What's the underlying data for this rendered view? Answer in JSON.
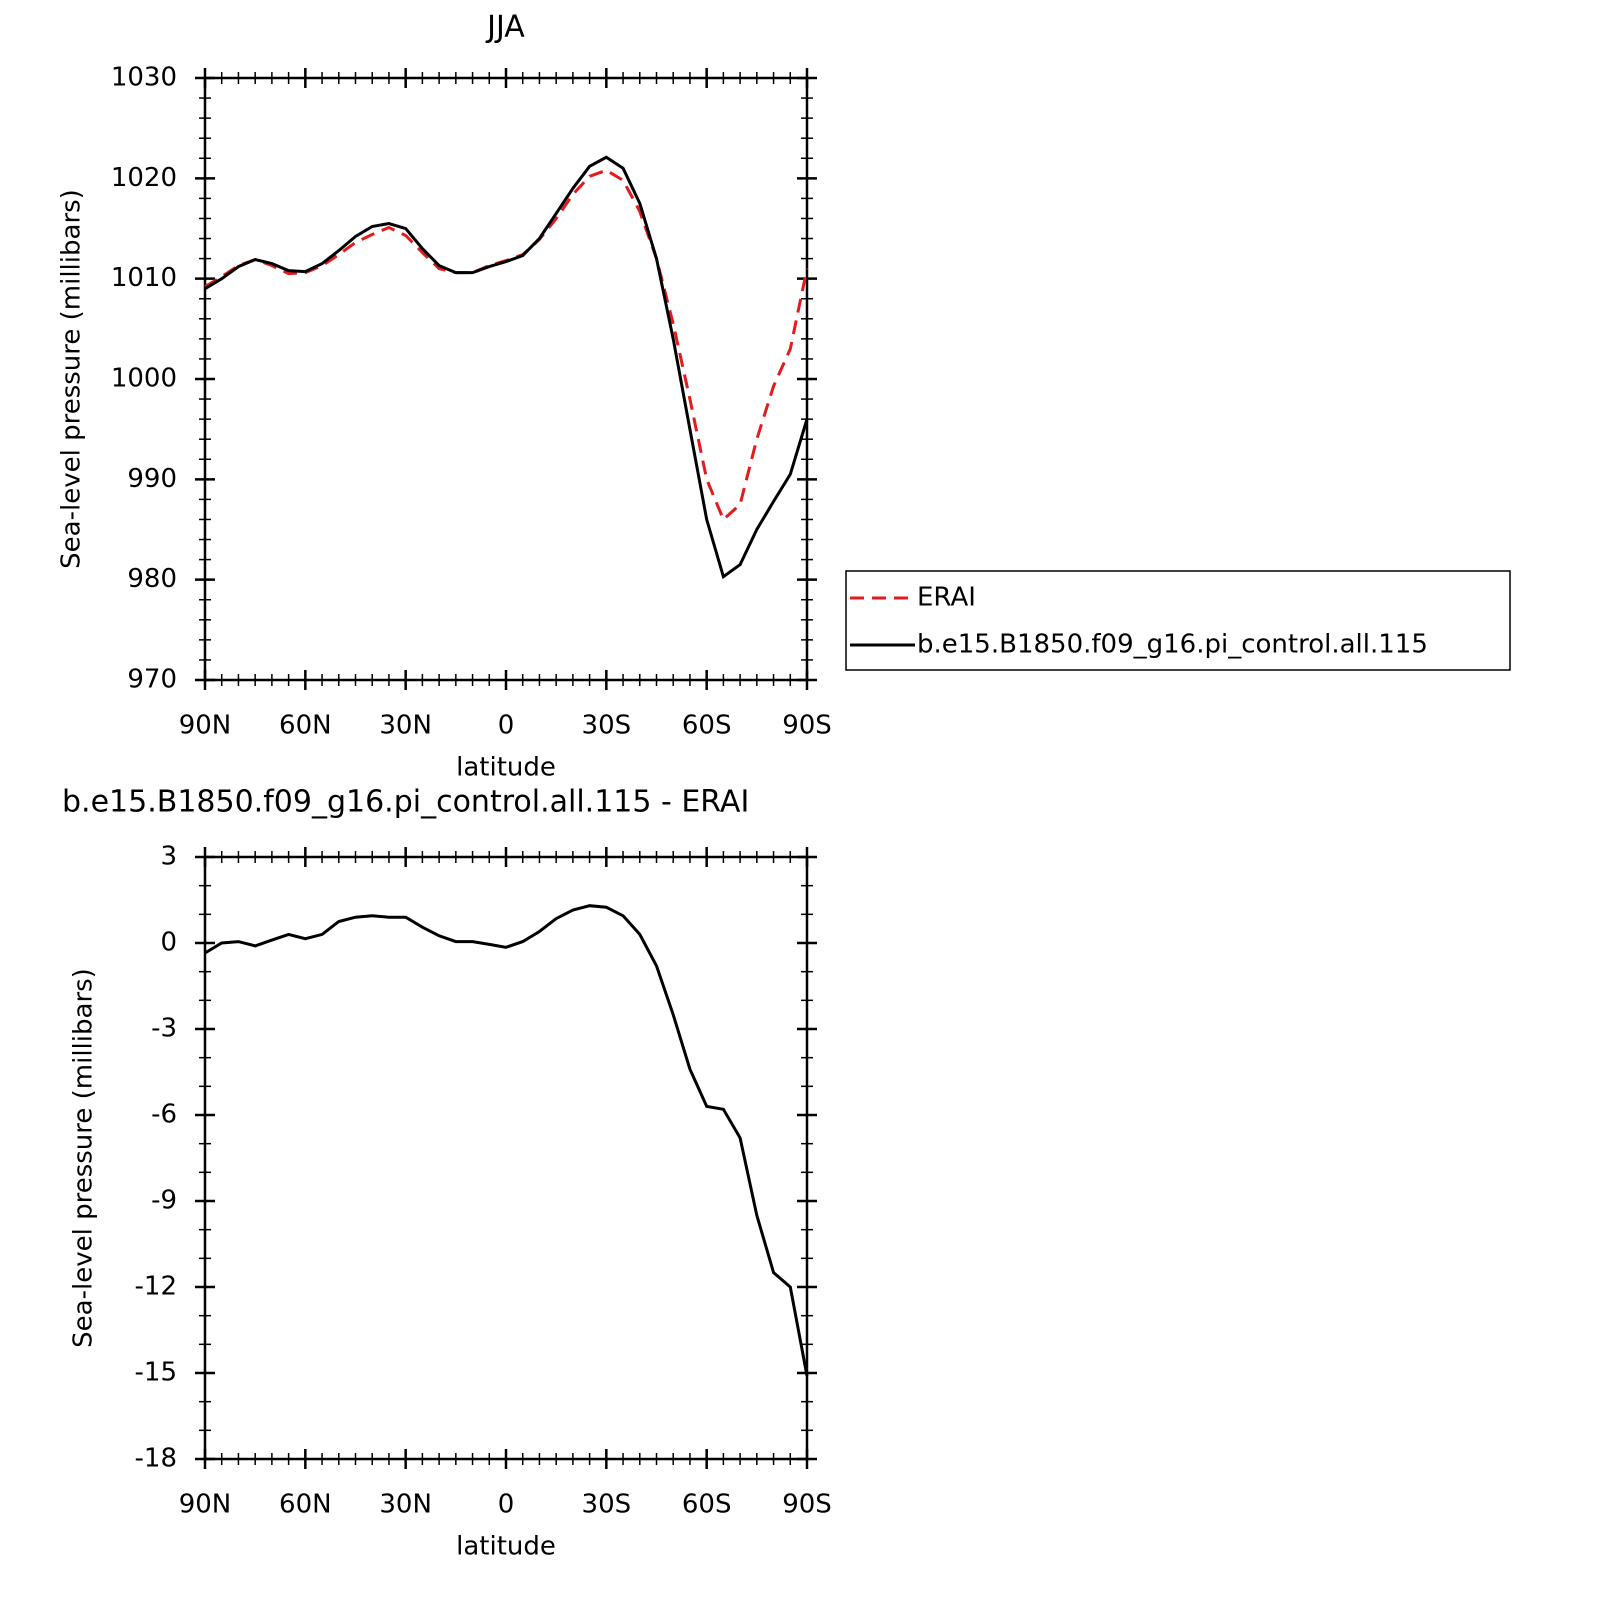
{
  "chart_data": [
    {
      "type": "line",
      "title": "JJA",
      "xlabel": "latitude",
      "ylabel": "Sea-level pressure (millibars)",
      "x": [
        90,
        85,
        80,
        75,
        70,
        65,
        60,
        55,
        50,
        45,
        40,
        35,
        30,
        25,
        20,
        15,
        10,
        5,
        0,
        -5,
        -10,
        -15,
        -20,
        -25,
        -30,
        -35,
        -40,
        -45,
        -50,
        -55,
        -60,
        -65,
        -70,
        -75,
        -80,
        -85,
        -90
      ],
      "series": [
        {
          "name": "ERAI",
          "color": "#e41a1c",
          "line_style": "dashed",
          "values": [
            1009.2,
            1010.2,
            1011.3,
            1011.9,
            1011.3,
            1010.5,
            1010.6,
            1011.3,
            1012.4,
            1013.6,
            1014.4,
            1015.1,
            1014.3,
            1012.6,
            1011,
            1010.6,
            1010.6,
            1011.3,
            1011.8,
            1012.4,
            1013.9,
            1016,
            1018.4,
            1020.2,
            1020.8,
            1019.8,
            1016.7,
            1012,
            1005.5,
            998,
            990,
            986,
            987.5,
            994,
            999.3,
            1003,
            1011
          ]
        },
        {
          "name": "b.e15.B1850.f09_g16.pi_control.all.115",
          "color": "#000000",
          "line_style": "solid",
          "values": [
            1009,
            1010,
            1011.2,
            1011.9,
            1011.5,
            1010.8,
            1010.7,
            1011.5,
            1012.8,
            1014.2,
            1015.2,
            1015.5,
            1015,
            1013,
            1011.3,
            1010.6,
            1010.6,
            1011.2,
            1011.7,
            1012.3,
            1014,
            1016.5,
            1019,
            1021.2,
            1022.1,
            1021,
            1017.5,
            1012,
            1004,
            995,
            986,
            980.3,
            981.5,
            985,
            987.8,
            990.5,
            996
          ]
        }
      ],
      "xlim": [
        90,
        -90
      ],
      "xticks": [
        {
          "value": 90,
          "label": "90N"
        },
        {
          "value": 60,
          "label": "60N"
        },
        {
          "value": 30,
          "label": "30N"
        },
        0,
        {
          "value": -30,
          "label": "30S"
        },
        {
          "value": -60,
          "label": "60S"
        },
        {
          "value": -90,
          "label": "90S"
        }
      ],
      "ylim": [
        970,
        1030
      ],
      "yticks": [
        970,
        980,
        990,
        1000,
        1010,
        1020,
        1030
      ],
      "legend": "right"
    },
    {
      "type": "line",
      "title": "b.e15.B1850.f09_g16.pi_control.all.115 - ERAI",
      "xlabel": "latitude",
      "ylabel": "Sea-level pressure (millibars)",
      "x": [
        90,
        85,
        80,
        75,
        70,
        65,
        60,
        55,
        50,
        45,
        40,
        35,
        30,
        25,
        20,
        15,
        10,
        5,
        0,
        -5,
        -10,
        -15,
        -20,
        -25,
        -30,
        -35,
        -40,
        -45,
        -50,
        -55,
        -60,
        -65,
        -70,
        -75,
        -80,
        -85,
        -90
      ],
      "color": "#000000",
      "values": [
        -0.35,
        0,
        0.05,
        -0.1,
        0.1,
        0.3,
        0.15,
        0.3,
        0.75,
        0.9,
        0.95,
        0.9,
        0.9,
        0.55,
        0.25,
        0.05,
        0.05,
        -0.05,
        -0.15,
        0.05,
        0.4,
        0.85,
        1.15,
        1.3,
        1.25,
        0.95,
        0.3,
        -0.8,
        -2.5,
        -4.4,
        -5.7,
        -5.8,
        -6.8,
        -9.5,
        -11.5,
        -12,
        -15.1
      ],
      "xlim": [
        90,
        -90
      ],
      "xticks": [
        {
          "value": 90,
          "label": "90N"
        },
        {
          "value": 60,
          "label": "60N"
        },
        {
          "value": 30,
          "label": "30N"
        },
        0,
        {
          "value": -30,
          "label": "30S"
        },
        {
          "value": -60,
          "label": "60S"
        },
        {
          "value": -90,
          "label": "90S"
        }
      ],
      "ylim": [
        -18,
        3
      ],
      "yticks": [
        -18,
        -15,
        -12,
        -9,
        -6,
        -3,
        0,
        3
      ]
    }
  ]
}
